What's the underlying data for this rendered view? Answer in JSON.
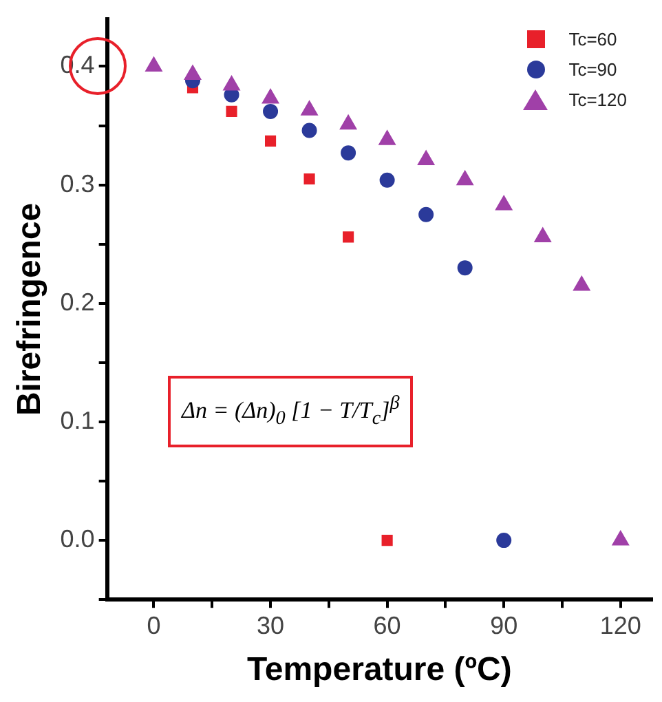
{
  "chart_data": {
    "type": "scatter",
    "xlabel": "Temperature (ºC)",
    "ylabel": "Birefringence",
    "x": [
      0,
      10,
      20,
      30,
      40,
      50,
      60,
      70,
      80,
      90,
      100,
      110,
      120
    ],
    "series": [
      {
        "name": "Tc=60",
        "color": "#e8202a",
        "marker": "square",
        "values": [
          null,
          0.382,
          0.362,
          0.337,
          0.305,
          0.256,
          0,
          null,
          null,
          null,
          null,
          null,
          null
        ]
      },
      {
        "name": "Tc=90",
        "color": "#2b3a9a",
        "marker": "circle",
        "values": [
          null,
          0.388,
          0.376,
          0.362,
          0.346,
          0.327,
          0.304,
          0.275,
          0.23,
          0,
          null,
          null,
          null
        ]
      },
      {
        "name": "Tc=120",
        "color": "#a040a8",
        "marker": "triangle",
        "values": [
          0.4,
          0.393,
          0.384,
          0.373,
          0.363,
          0.351,
          0.338,
          0.321,
          0.304,
          0.283,
          0.256,
          0.215,
          0
        ]
      }
    ],
    "xlim": [
      -12,
      128
    ],
    "xticks": [
      0,
      {
        "value": 15,
        "label": null
      },
      30,
      {
        "value": 45,
        "label": null
      },
      60,
      {
        "value": 75,
        "label": null
      },
      90,
      {
        "value": 105,
        "label": null
      },
      120
    ],
    "ylim": [
      -0.05,
      0.44
    ],
    "yticks": [
      {
        "value": -0.05,
        "label": null
      },
      "0.0",
      {
        "value": 0.05,
        "label": null
      },
      0.1,
      {
        "value": 0.15,
        "label": null
      },
      0.2,
      {
        "value": 0.25,
        "label": null
      },
      0.3,
      {
        "value": 0.35,
        "label": null
      },
      0.4
    ],
    "annotations": [
      "Δn = (Δn)$_{0}$ [1 − T/T$_{c}$]$^{β}$"
    ],
    "grid": false,
    "legend": "top right"
  }
}
